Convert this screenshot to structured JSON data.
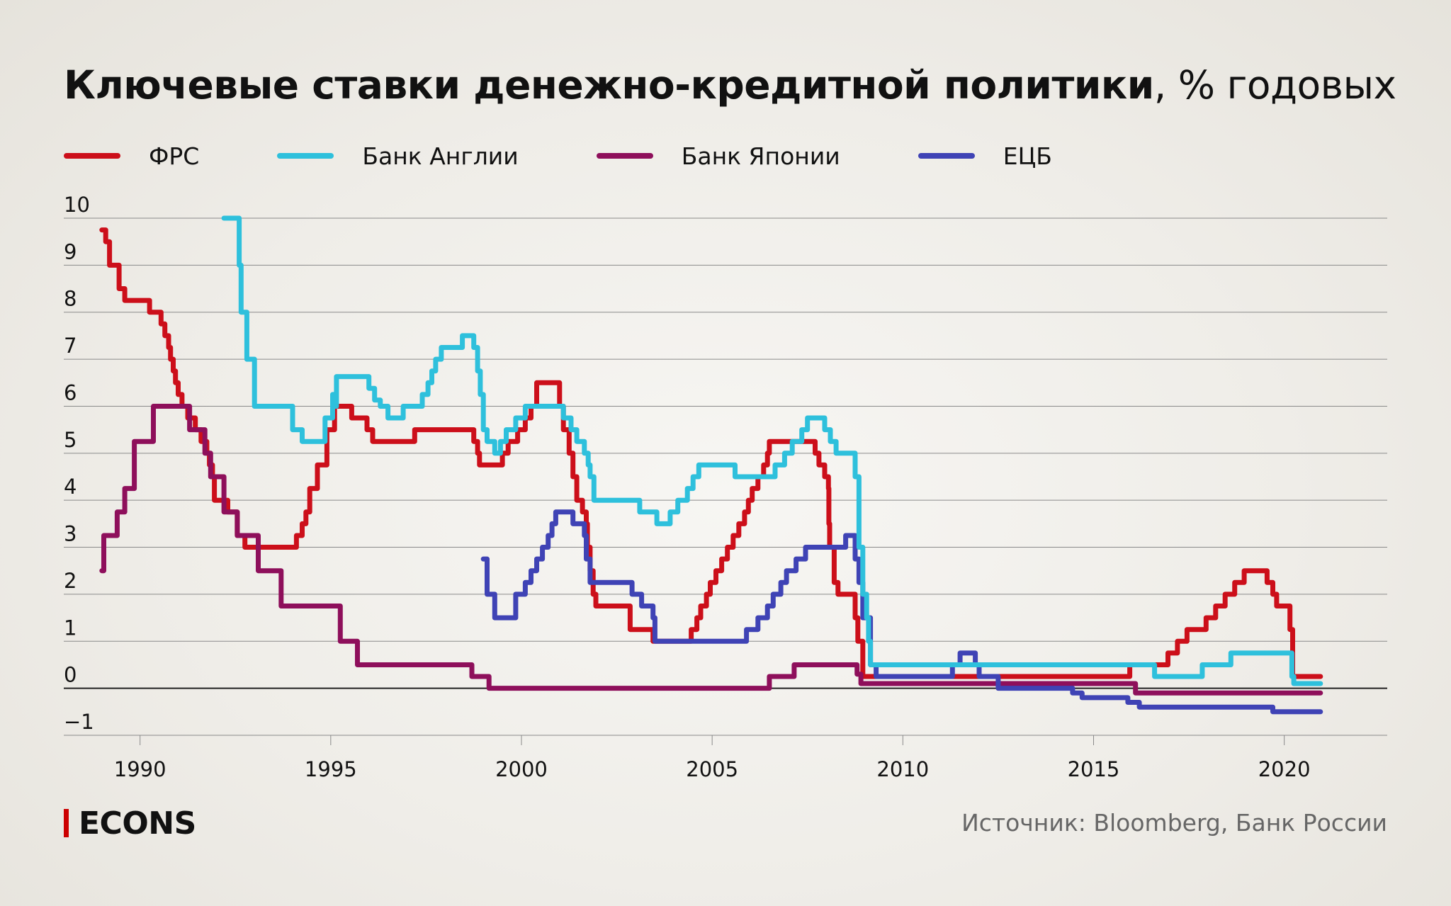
{
  "title": {
    "bold": "Ключевые ставки денежно-кредитной политики",
    "light": ", % годовых"
  },
  "legend": [
    {
      "label": "ФРС",
      "color": "#cc0f1a"
    },
    {
      "label": "Банк Англии",
      "color": "#2ec0dc"
    },
    {
      "label": "Банк Японии",
      "color": "#8e0f5b"
    },
    {
      "label": "ЕЦБ",
      "color": "#3f43b5"
    }
  ],
  "brand": "ECONS",
  "source": "Источник: Bloomberg, Банк России",
  "chart_data": {
    "type": "line",
    "step": true,
    "xlim": [
      1988.0,
      2022.7
    ],
    "ylim": [
      -1,
      10
    ],
    "x_ticks": [
      1990,
      1995,
      2000,
      2005,
      2010,
      2015,
      2020
    ],
    "y_ticks": [
      10,
      9,
      8,
      7,
      6,
      5,
      4,
      3,
      2,
      1,
      0,
      -1
    ],
    "grid": true,
    "legend_position": "top",
    "series": [
      {
        "name": "ФРС",
        "color": "#cc0f1a",
        "points": [
          [
            1989.0,
            9.75
          ],
          [
            1989.1,
            9.5
          ],
          [
            1989.2,
            9.0
          ],
          [
            1989.45,
            8.5
          ],
          [
            1989.6,
            8.25
          ],
          [
            1990.25,
            8.0
          ],
          [
            1990.55,
            7.75
          ],
          [
            1990.65,
            7.5
          ],
          [
            1990.75,
            7.25
          ],
          [
            1990.8,
            7.0
          ],
          [
            1990.87,
            6.75
          ],
          [
            1990.93,
            6.5
          ],
          [
            1991.0,
            6.25
          ],
          [
            1991.1,
            6.0
          ],
          [
            1991.25,
            5.75
          ],
          [
            1991.45,
            5.5
          ],
          [
            1991.6,
            5.25
          ],
          [
            1991.75,
            5.0
          ],
          [
            1991.82,
            4.75
          ],
          [
            1991.9,
            4.5
          ],
          [
            1991.95,
            4.0
          ],
          [
            1992.3,
            3.75
          ],
          [
            1992.55,
            3.25
          ],
          [
            1992.75,
            3.0
          ],
          [
            1994.1,
            3.25
          ],
          [
            1994.25,
            3.5
          ],
          [
            1994.35,
            3.75
          ],
          [
            1994.45,
            4.25
          ],
          [
            1994.65,
            4.75
          ],
          [
            1994.9,
            5.5
          ],
          [
            1995.1,
            6.0
          ],
          [
            1995.55,
            5.75
          ],
          [
            1995.95,
            5.5
          ],
          [
            1996.1,
            5.25
          ],
          [
            1997.2,
            5.5
          ],
          [
            1998.75,
            5.25
          ],
          [
            1998.85,
            5.0
          ],
          [
            1998.9,
            4.75
          ],
          [
            1999.5,
            5.0
          ],
          [
            1999.65,
            5.25
          ],
          [
            1999.9,
            5.5
          ],
          [
            2000.1,
            5.75
          ],
          [
            2000.25,
            6.0
          ],
          [
            2000.4,
            6.5
          ],
          [
            2001.0,
            6.0
          ],
          [
            2001.1,
            5.5
          ],
          [
            2001.25,
            5.0
          ],
          [
            2001.35,
            4.5
          ],
          [
            2001.45,
            4.0
          ],
          [
            2001.6,
            3.75
          ],
          [
            2001.7,
            3.5
          ],
          [
            2001.73,
            3.0
          ],
          [
            2001.8,
            2.5
          ],
          [
            2001.88,
            2.0
          ],
          [
            2001.95,
            1.75
          ],
          [
            2002.85,
            1.25
          ],
          [
            2003.45,
            1.0
          ],
          [
            2004.45,
            1.25
          ],
          [
            2004.6,
            1.5
          ],
          [
            2004.7,
            1.75
          ],
          [
            2004.85,
            2.0
          ],
          [
            2004.95,
            2.25
          ],
          [
            2005.1,
            2.5
          ],
          [
            2005.25,
            2.75
          ],
          [
            2005.4,
            3.0
          ],
          [
            2005.55,
            3.25
          ],
          [
            2005.7,
            3.5
          ],
          [
            2005.85,
            3.75
          ],
          [
            2005.95,
            4.0
          ],
          [
            2006.05,
            4.25
          ],
          [
            2006.2,
            4.5
          ],
          [
            2006.35,
            4.75
          ],
          [
            2006.45,
            5.0
          ],
          [
            2006.5,
            5.25
          ],
          [
            2007.7,
            5.0
          ],
          [
            2007.8,
            4.75
          ],
          [
            2007.95,
            4.5
          ],
          [
            2008.05,
            4.25
          ],
          [
            2008.06,
            3.5
          ],
          [
            2008.08,
            3.0
          ],
          [
            2008.2,
            2.25
          ],
          [
            2008.3,
            2.0
          ],
          [
            2008.75,
            1.5
          ],
          [
            2008.82,
            1.0
          ],
          [
            2008.95,
            0.25
          ],
          [
            2015.95,
            0.5
          ],
          [
            2016.95,
            0.75
          ],
          [
            2017.2,
            1.0
          ],
          [
            2017.45,
            1.25
          ],
          [
            2017.95,
            1.5
          ],
          [
            2018.2,
            1.75
          ],
          [
            2018.45,
            2.0
          ],
          [
            2018.7,
            2.25
          ],
          [
            2018.95,
            2.5
          ],
          [
            2019.55,
            2.25
          ],
          [
            2019.7,
            2.0
          ],
          [
            2019.8,
            1.75
          ],
          [
            2020.15,
            1.25
          ],
          [
            2020.22,
            0.25
          ],
          [
            2020.95,
            0.25
          ]
        ]
      },
      {
        "name": "Банк Англии",
        "color": "#2ec0dc",
        "points": [
          [
            1992.2,
            10.0
          ],
          [
            1992.6,
            9.0
          ],
          [
            1992.65,
            8.0
          ],
          [
            1992.8,
            7.0
          ],
          [
            1993.0,
            6.0
          ],
          [
            1994.0,
            5.5
          ],
          [
            1994.25,
            5.25
          ],
          [
            1994.85,
            5.75
          ],
          [
            1995.05,
            6.25
          ],
          [
            1995.1,
            6.0
          ],
          [
            1995.15,
            6.63
          ],
          [
            1996.0,
            6.38
          ],
          [
            1996.15,
            6.13
          ],
          [
            1996.3,
            6.0
          ],
          [
            1996.5,
            5.75
          ],
          [
            1996.9,
            6.0
          ],
          [
            1997.4,
            6.25
          ],
          [
            1997.55,
            6.5
          ],
          [
            1997.65,
            6.75
          ],
          [
            1997.75,
            7.0
          ],
          [
            1997.9,
            7.25
          ],
          [
            1998.45,
            7.5
          ],
          [
            1998.75,
            7.25
          ],
          [
            1998.85,
            6.75
          ],
          [
            1998.92,
            6.25
          ],
          [
            1999.0,
            5.5
          ],
          [
            1999.1,
            5.25
          ],
          [
            1999.3,
            5.0
          ],
          [
            1999.45,
            5.25
          ],
          [
            1999.6,
            5.5
          ],
          [
            1999.85,
            5.75
          ],
          [
            2000.1,
            6.0
          ],
          [
            2001.1,
            5.75
          ],
          [
            2001.3,
            5.5
          ],
          [
            2001.45,
            5.25
          ],
          [
            2001.65,
            5.0
          ],
          [
            2001.75,
            4.75
          ],
          [
            2001.8,
            4.5
          ],
          [
            2001.9,
            4.0
          ],
          [
            2003.1,
            3.75
          ],
          [
            2003.55,
            3.5
          ],
          [
            2003.9,
            3.75
          ],
          [
            2004.1,
            4.0
          ],
          [
            2004.35,
            4.25
          ],
          [
            2004.5,
            4.5
          ],
          [
            2004.65,
            4.75
          ],
          [
            2005.6,
            4.5
          ],
          [
            2006.65,
            4.75
          ],
          [
            2006.9,
            5.0
          ],
          [
            2007.1,
            5.25
          ],
          [
            2007.35,
            5.5
          ],
          [
            2007.5,
            5.75
          ],
          [
            2007.95,
            5.5
          ],
          [
            2008.1,
            5.25
          ],
          [
            2008.25,
            5.0
          ],
          [
            2008.75,
            4.5
          ],
          [
            2008.85,
            3.0
          ],
          [
            2008.95,
            2.0
          ],
          [
            2009.05,
            1.5
          ],
          [
            2009.1,
            1.0
          ],
          [
            2009.15,
            0.5
          ],
          [
            2016.6,
            0.25
          ],
          [
            2017.85,
            0.5
          ],
          [
            2018.6,
            0.75
          ],
          [
            2020.2,
            0.25
          ],
          [
            2020.25,
            0.1
          ],
          [
            2020.95,
            0.1
          ]
        ]
      },
      {
        "name": "Банк Японии",
        "color": "#8e0f5b",
        "points": [
          [
            1989.0,
            2.5
          ],
          [
            1989.05,
            3.25
          ],
          [
            1989.4,
            3.75
          ],
          [
            1989.6,
            4.25
          ],
          [
            1989.85,
            5.25
          ],
          [
            1990.35,
            6.0
          ],
          [
            1991.3,
            5.5
          ],
          [
            1991.7,
            5.0
          ],
          [
            1991.85,
            4.5
          ],
          [
            1992.2,
            3.75
          ],
          [
            1992.55,
            3.25
          ],
          [
            1993.1,
            2.5
          ],
          [
            1993.7,
            1.75
          ],
          [
            1995.25,
            1.0
          ],
          [
            1995.7,
            0.5
          ],
          [
            1998.7,
            0.25
          ],
          [
            1999.15,
            0.0
          ],
          [
            2006.5,
            0.25
          ],
          [
            2007.15,
            0.5
          ],
          [
            2008.8,
            0.3
          ],
          [
            2008.9,
            0.1
          ],
          [
            2016.1,
            -0.1
          ],
          [
            2020.95,
            -0.1
          ]
        ]
      },
      {
        "name": "ЕЦБ",
        "color": "#3f43b5",
        "points": [
          [
            1999.0,
            2.75
          ],
          [
            1999.1,
            2.0
          ],
          [
            1999.3,
            1.5
          ],
          [
            1999.85,
            2.0
          ],
          [
            2000.1,
            2.25
          ],
          [
            2000.25,
            2.5
          ],
          [
            2000.4,
            2.75
          ],
          [
            2000.55,
            3.0
          ],
          [
            2000.7,
            3.25
          ],
          [
            2000.8,
            3.5
          ],
          [
            2000.9,
            3.75
          ],
          [
            2001.35,
            3.5
          ],
          [
            2001.65,
            3.25
          ],
          [
            2001.7,
            2.75
          ],
          [
            2001.8,
            2.25
          ],
          [
            2002.9,
            2.0
          ],
          [
            2003.15,
            1.75
          ],
          [
            2003.45,
            1.5
          ],
          [
            2003.5,
            1.0
          ],
          [
            2005.9,
            1.25
          ],
          [
            2006.2,
            1.5
          ],
          [
            2006.45,
            1.75
          ],
          [
            2006.6,
            2.0
          ],
          [
            2006.8,
            2.25
          ],
          [
            2006.95,
            2.5
          ],
          [
            2007.2,
            2.75
          ],
          [
            2007.45,
            3.0
          ],
          [
            2008.5,
            3.25
          ],
          [
            2008.75,
            2.75
          ],
          [
            2008.85,
            2.25
          ],
          [
            2008.95,
            1.5
          ],
          [
            2009.15,
            0.5
          ],
          [
            2009.3,
            0.25
          ],
          [
            2011.3,
            0.5
          ],
          [
            2011.5,
            0.75
          ],
          [
            2011.9,
            0.5
          ],
          [
            2012.0,
            0.25
          ],
          [
            2012.5,
            0.0
          ],
          [
            2014.45,
            -0.1
          ],
          [
            2014.7,
            -0.2
          ],
          [
            2015.9,
            -0.3
          ],
          [
            2016.2,
            -0.4
          ],
          [
            2019.7,
            -0.5
          ],
          [
            2020.95,
            -0.5
          ]
        ]
      }
    ]
  }
}
